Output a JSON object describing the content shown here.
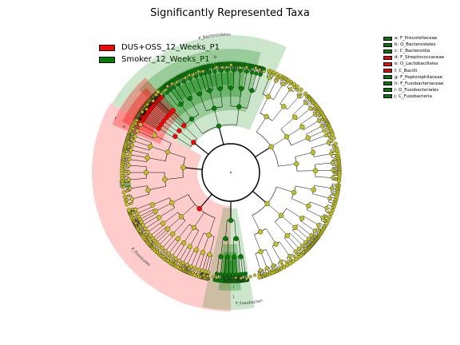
{
  "title": "Significantly Represented Taxa",
  "legend": [
    {
      "label": "DUS+OSS_12_Weeks_P1",
      "color": "#ff0000"
    },
    {
      "label": "Smoker_12_Weeks_P1",
      "color": "#008000"
    }
  ],
  "clade_legend": [
    {
      "label": "a: F_Prevotellaceae",
      "color": "#008000"
    },
    {
      "label": "b: O_Bacteroidales",
      "color": "#008000"
    },
    {
      "label": "c: C_Bacteroidia",
      "color": "#008000"
    },
    {
      "label": "d: F_Streptococcaceae",
      "color": "#ff0000"
    },
    {
      "label": "e: O_Lactobacillales",
      "color": "#ff0000"
    },
    {
      "label": "f: C_Bacilli",
      "color": "#ff0000"
    },
    {
      "label": "g: F_Peptoniphilaceae",
      "color": "#008000"
    },
    {
      "label": "h: F_Fusobacteriaceae",
      "color": "#008000"
    },
    {
      "label": "i: O_Fusobacteriales",
      "color": "#008000"
    },
    {
      "label": "j: C_Fusobacteria",
      "color": "#008000"
    }
  ],
  "clade_labels": {
    "bacteroidetes": "P_Bacteroidetes",
    "firmicutes": "P_Firmicutes",
    "fusobacteria": "P_Fusobacteria",
    "a": "a",
    "b": "b",
    "c": "c",
    "d": "d",
    "e": "e",
    "f": "f",
    "g": "g",
    "h": "h",
    "i": "i",
    "j": "j"
  },
  "colors": {
    "enriched_dus_oss": "#ff0000",
    "enriched_smoker": "#008000",
    "non_significant": "#c0c020"
  }
}
